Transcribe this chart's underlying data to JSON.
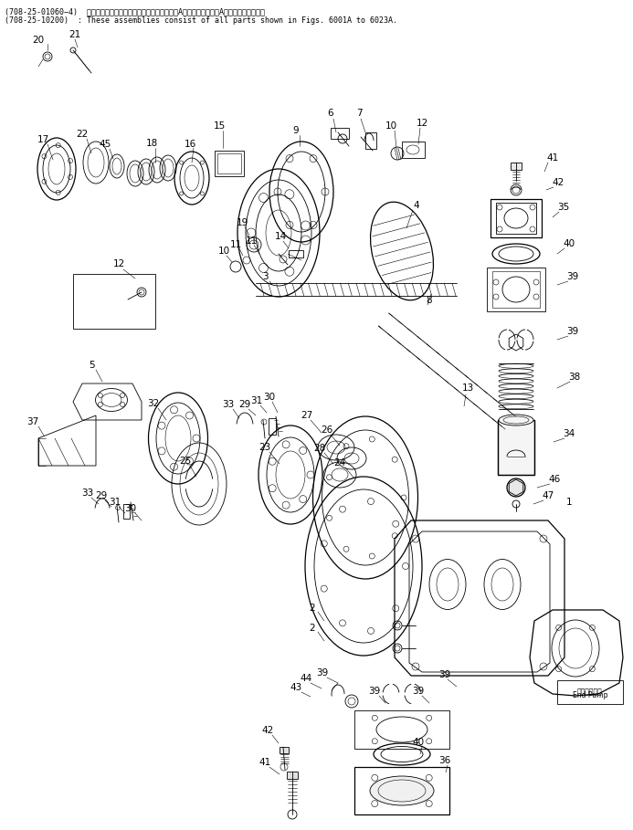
{
  "header_line1": "(708-25-01060−4)  これらのアセンブリの構成部品は第６００１A図から第６０２３A図までご覧下さい。",
  "header_line2": "(708-25-10200)  : These assemblies consist of all parts shown in Figs. 6001A to 6023A.",
  "bg_color": "#ffffff"
}
